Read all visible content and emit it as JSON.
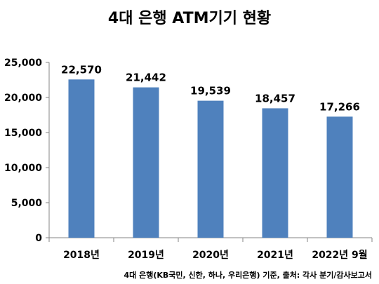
{
  "chart_data": {
    "type": "bar",
    "title": "4대 은행 ATM기기 현황",
    "categories": [
      "2018년",
      "2019년",
      "2020년",
      "2021년",
      "2022년 9월"
    ],
    "values": [
      22570,
      21442,
      19539,
      18457,
      17266
    ],
    "value_labels": [
      "22,570",
      "21,442",
      "19,539",
      "18,457",
      "17,266"
    ],
    "ylim": [
      0,
      25000
    ],
    "yticks": [
      0,
      5000,
      10000,
      15000,
      20000,
      25000
    ],
    "ytick_labels": [
      "0",
      "5,000",
      "10,000",
      "15,000",
      "20,000",
      "25,000"
    ],
    "grid": false,
    "bar_color": "#4F81BD",
    "xlabel": "",
    "ylabel": ""
  },
  "source_note": "4대 은행(KB국민, 신한, 하나, 우리은행) 기준, 출처: 각사 분기/감사보고서"
}
